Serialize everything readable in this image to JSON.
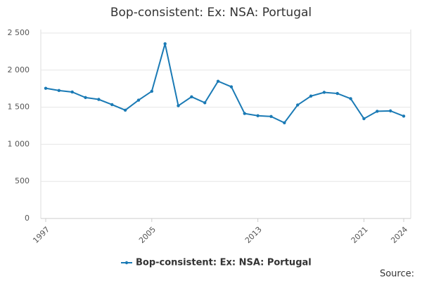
{
  "chart_data": {
    "type": "line",
    "title": "Bop-consistent: Ex: NSA: Portugal",
    "x": [
      1997,
      1998,
      1999,
      2000,
      2001,
      2002,
      2003,
      2004,
      2005,
      2006,
      2007,
      2008,
      2009,
      2010,
      2011,
      2012,
      2013,
      2014,
      2015,
      2016,
      2017,
      2018,
      2019,
      2020,
      2021,
      2022,
      2023,
      2024
    ],
    "series": [
      {
        "name": "Bop-consistent: Ex: NSA: Portugal",
        "color": "#1a7ab5",
        "values": [
          1755,
          1725,
          1705,
          1630,
          1605,
          1535,
          1460,
          1595,
          1715,
          2355,
          1520,
          1640,
          1560,
          1850,
          1775,
          1415,
          1385,
          1375,
          1290,
          1530,
          1650,
          1700,
          1685,
          1615,
          1345,
          1445,
          1450,
          1380
        ]
      }
    ],
    "xlim": [
      1997,
      2024
    ],
    "xticks": [
      1997,
      2005,
      2013,
      2021,
      2024
    ],
    "ylim": [
      0,
      2500
    ],
    "yticks": [
      0,
      500,
      {
        "value": 1000,
        "label": "1 000"
      },
      {
        "value": 1500,
        "label": "1 500"
      },
      {
        "value": 2000,
        "label": "2 000"
      },
      {
        "value": 2500,
        "label": "2 500"
      }
    ],
    "grid": true,
    "legend": "bottom",
    "source": "Source:"
  }
}
